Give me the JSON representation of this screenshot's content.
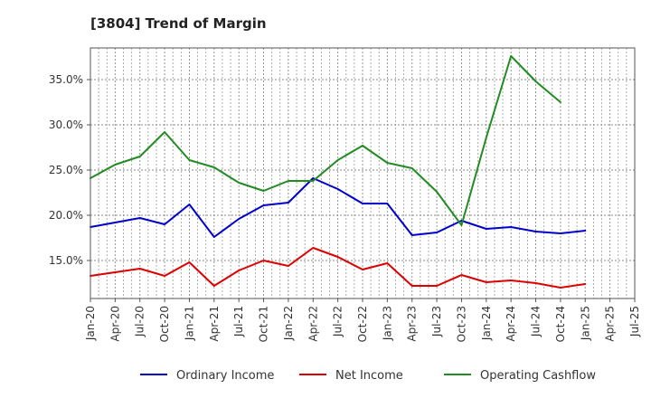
{
  "chart_data": {
    "type": "line",
    "title": "[3804]  Trend of Margin",
    "xlabel": "",
    "ylabel": "",
    "x_ticks": [
      "Jan-20",
      "Apr-20",
      "Jul-20",
      "Oct-20",
      "Jan-21",
      "Apr-21",
      "Jul-21",
      "Oct-21",
      "Jan-22",
      "Apr-22",
      "Jul-22",
      "Oct-22",
      "Jan-23",
      "Apr-23",
      "Jul-23",
      "Oct-23",
      "Jan-24",
      "Apr-24",
      "Jul-24",
      "Oct-24",
      "Jan-25",
      "Apr-25",
      "Jul-25"
    ],
    "x": [
      "Jan-20",
      "Apr-20",
      "Jul-20",
      "Oct-20",
      "Jan-21",
      "Apr-21",
      "Jul-21",
      "Oct-21",
      "Jan-22",
      "Apr-22",
      "Jul-22",
      "Oct-22",
      "Jan-23",
      "Apr-23",
      "Jul-23",
      "Oct-23",
      "Jan-24",
      "Apr-24",
      "Jul-24",
      "Oct-24",
      "Jan-25"
    ],
    "ylim": [
      10.8,
      38.5
    ],
    "y_ticks": [
      15.0,
      20.0,
      25.0,
      30.0,
      35.0
    ],
    "y_tick_labels": [
      "15.0%",
      "20.0%",
      "25.0%",
      "30.0%",
      "35.0%"
    ],
    "grid": true,
    "legend_position": "bottom",
    "series": [
      {
        "name": "Ordinary Income",
        "color": "#0000cc",
        "values": [
          18.7,
          19.2,
          19.7,
          19.0,
          21.2,
          17.6,
          19.6,
          21.1,
          21.4,
          24.1,
          22.9,
          21.3,
          21.3,
          17.8,
          18.1,
          19.4,
          18.5,
          18.7,
          18.2,
          18.0,
          18.3
        ]
      },
      {
        "name": "Net Income",
        "color": "#dd0000",
        "values": [
          13.3,
          13.7,
          14.1,
          13.3,
          14.8,
          12.2,
          13.9,
          15.0,
          14.4,
          16.4,
          15.4,
          14.0,
          14.7,
          12.2,
          12.2,
          13.4,
          12.6,
          12.8,
          12.5,
          12.0,
          12.4
        ]
      },
      {
        "name": "Operating Cashflow",
        "color": "#228b22",
        "values": [
          24.1,
          25.6,
          26.5,
          29.2,
          26.1,
          25.3,
          23.6,
          22.7,
          23.8,
          23.8,
          26.1,
          27.7,
          25.8,
          25.2,
          22.6,
          18.9,
          28.6,
          37.6,
          34.8,
          32.5,
          null
        ]
      }
    ]
  }
}
